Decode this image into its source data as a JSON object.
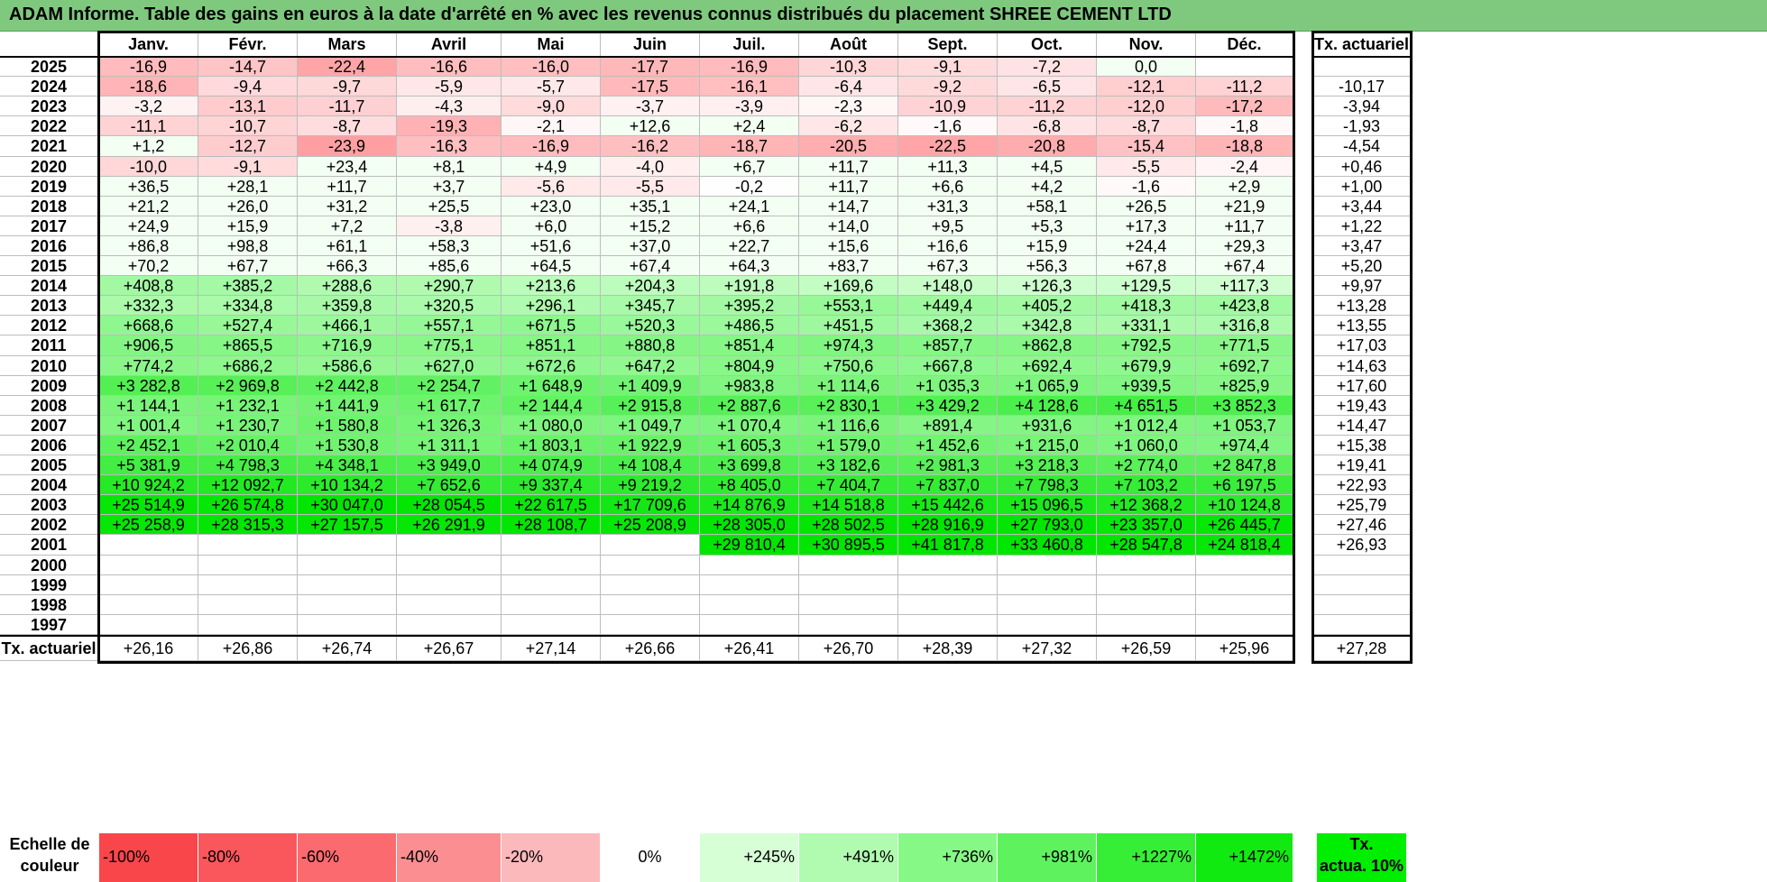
{
  "title": "ADAM Informe. Table des gains en euros à la date d'arrêté en % avec les revenus connus distribués du placement SHREE CEMENT LTD",
  "months": [
    "Janv.",
    "Févr.",
    "Mars",
    "Avril",
    "Mai",
    "Juin",
    "Juil.",
    "Août",
    "Sept.",
    "Oct.",
    "Nov.",
    "Déc."
  ],
  "rate_header": "Tx. actuariel",
  "rows": [
    {
      "year": "2025",
      "values": [
        "-16,9",
        "-14,7",
        "-22,4",
        "-16,6",
        "-16,0",
        "-17,7",
        "-16,9",
        "-10,3",
        "-9,1",
        "-7,2",
        "0,0",
        ""
      ],
      "rate": ""
    },
    {
      "year": "2024",
      "values": [
        "-18,6",
        "-9,4",
        "-9,7",
        "-5,9",
        "-5,7",
        "-17,5",
        "-16,1",
        "-6,4",
        "-9,2",
        "-6,5",
        "-12,1",
        "-11,2"
      ],
      "rate": "-10,17"
    },
    {
      "year": "2023",
      "values": [
        "-3,2",
        "-13,1",
        "-11,7",
        "-4,3",
        "-9,0",
        "-3,7",
        "-3,9",
        "-2,3",
        "-10,9",
        "-11,2",
        "-12,0",
        "-17,2"
      ],
      "rate": "-3,94"
    },
    {
      "year": "2022",
      "values": [
        "-11,1",
        "-10,7",
        "-8,7",
        "-19,3",
        "-2,1",
        "+12,6",
        "+2,4",
        "-6,2",
        "-1,6",
        "-6,8",
        "-8,7",
        "-1,8"
      ],
      "rate": "-1,93"
    },
    {
      "year": "2021",
      "values": [
        "+1,2",
        "-12,7",
        "-23,9",
        "-16,3",
        "-16,9",
        "-16,2",
        "-18,7",
        "-20,5",
        "-22,5",
        "-20,8",
        "-15,4",
        "-18,8"
      ],
      "rate": "-4,54"
    },
    {
      "year": "2020",
      "values": [
        "-10,0",
        "-9,1",
        "+23,4",
        "+8,1",
        "+4,9",
        "-4,0",
        "+6,7",
        "+11,7",
        "+11,3",
        "+4,5",
        "-5,5",
        "-2,4"
      ],
      "rate": "+0,46"
    },
    {
      "year": "2019",
      "values": [
        "+36,5",
        "+28,1",
        "+11,7",
        "+3,7",
        "-5,6",
        "-5,5",
        "-0,2",
        "+11,7",
        "+6,6",
        "+4,2",
        "-1,6",
        "+2,9"
      ],
      "rate": "+1,00"
    },
    {
      "year": "2018",
      "values": [
        "+21,2",
        "+26,0",
        "+31,2",
        "+25,5",
        "+23,0",
        "+35,1",
        "+24,1",
        "+14,7",
        "+31,3",
        "+58,1",
        "+26,5",
        "+21,9"
      ],
      "rate": "+3,44"
    },
    {
      "year": "2017",
      "values": [
        "+24,9",
        "+15,9",
        "+7,2",
        "-3,8",
        "+6,0",
        "+15,2",
        "+6,6",
        "+14,0",
        "+9,5",
        "+5,3",
        "+17,3",
        "+11,7"
      ],
      "rate": "+1,22"
    },
    {
      "year": "2016",
      "values": [
        "+86,8",
        "+98,8",
        "+61,1",
        "+58,3",
        "+51,6",
        "+37,0",
        "+22,7",
        "+15,6",
        "+16,6",
        "+15,9",
        "+24,4",
        "+29,3"
      ],
      "rate": "+3,47"
    },
    {
      "year": "2015",
      "values": [
        "+70,2",
        "+67,7",
        "+66,3",
        "+85,6",
        "+64,5",
        "+67,4",
        "+64,3",
        "+83,7",
        "+67,3",
        "+56,3",
        "+67,8",
        "+67,4"
      ],
      "rate": "+5,20"
    },
    {
      "year": "2014",
      "values": [
        "+408,8",
        "+385,2",
        "+288,6",
        "+290,7",
        "+213,6",
        "+204,3",
        "+191,8",
        "+169,6",
        "+148,0",
        "+126,3",
        "+129,5",
        "+117,3"
      ],
      "rate": "+9,97"
    },
    {
      "year": "2013",
      "values": [
        "+332,3",
        "+334,8",
        "+359,8",
        "+320,5",
        "+296,1",
        "+345,7",
        "+395,2",
        "+553,1",
        "+449,4",
        "+405,2",
        "+418,3",
        "+423,8"
      ],
      "rate": "+13,28"
    },
    {
      "year": "2012",
      "values": [
        "+668,6",
        "+527,4",
        "+466,1",
        "+557,1",
        "+671,5",
        "+520,3",
        "+486,5",
        "+451,5",
        "+368,2",
        "+342,8",
        "+331,1",
        "+316,8"
      ],
      "rate": "+13,55"
    },
    {
      "year": "2011",
      "values": [
        "+906,5",
        "+865,5",
        "+716,9",
        "+775,1",
        "+851,1",
        "+880,8",
        "+851,4",
        "+974,3",
        "+857,7",
        "+862,8",
        "+792,5",
        "+771,5"
      ],
      "rate": "+17,03"
    },
    {
      "year": "2010",
      "values": [
        "+774,2",
        "+686,2",
        "+586,6",
        "+627,0",
        "+672,6",
        "+647,2",
        "+804,9",
        "+750,6",
        "+667,8",
        "+692,4",
        "+679,9",
        "+692,7"
      ],
      "rate": "+14,63"
    },
    {
      "year": "2009",
      "values": [
        "+3 282,8",
        "+2 969,8",
        "+2 442,8",
        "+2 254,7",
        "+1 648,9",
        "+1 409,9",
        "+983,8",
        "+1 114,6",
        "+1 035,3",
        "+1 065,9",
        "+939,5",
        "+825,9"
      ],
      "rate": "+17,60"
    },
    {
      "year": "2008",
      "values": [
        "+1 144,1",
        "+1 232,1",
        "+1 441,9",
        "+1 617,7",
        "+2 144,4",
        "+2 915,8",
        "+2 887,6",
        "+2 830,1",
        "+3 429,2",
        "+4 128,6",
        "+4 651,5",
        "+3 852,3"
      ],
      "rate": "+19,43"
    },
    {
      "year": "2007",
      "values": [
        "+1 001,4",
        "+1 230,7",
        "+1 580,8",
        "+1 326,3",
        "+1 080,0",
        "+1 049,7",
        "+1 070,4",
        "+1 116,6",
        "+891,4",
        "+931,6",
        "+1 012,4",
        "+1 053,7"
      ],
      "rate": "+14,47"
    },
    {
      "year": "2006",
      "values": [
        "+2 452,1",
        "+2 010,4",
        "+1 530,8",
        "+1 311,1",
        "+1 803,1",
        "+1 922,9",
        "+1 605,3",
        "+1 579,0",
        "+1 452,6",
        "+1 215,0",
        "+1 060,0",
        "+974,4"
      ],
      "rate": "+15,38"
    },
    {
      "year": "2005",
      "values": [
        "+5 381,9",
        "+4 798,3",
        "+4 348,1",
        "+3 949,0",
        "+4 074,9",
        "+4 108,4",
        "+3 699,8",
        "+3 182,6",
        "+2 981,3",
        "+3 218,3",
        "+2 774,0",
        "+2 847,8"
      ],
      "rate": "+19,41"
    },
    {
      "year": "2004",
      "values": [
        "+10 924,2",
        "+12 092,7",
        "+10 134,2",
        "+7 652,6",
        "+9 337,4",
        "+9 219,2",
        "+8 405,0",
        "+7 404,7",
        "+7 837,0",
        "+7 798,3",
        "+7 103,2",
        "+6 197,5"
      ],
      "rate": "+22,93"
    },
    {
      "year": "2003",
      "values": [
        "+25 514,9",
        "+26 574,8",
        "+30 047,0",
        "+28 054,5",
        "+22 617,5",
        "+17 709,6",
        "+14 876,9",
        "+14 518,8",
        "+15 442,6",
        "+15 096,5",
        "+12 368,2",
        "+10 124,8"
      ],
      "rate": "+25,79"
    },
    {
      "year": "2002",
      "values": [
        "+25 258,9",
        "+28 315,3",
        "+27 157,5",
        "+26 291,9",
        "+28 108,7",
        "+25 208,9",
        "+28 305,0",
        "+28 502,5",
        "+28 916,9",
        "+27 793,0",
        "+23 357,0",
        "+26 445,7"
      ],
      "rate": "+27,46"
    },
    {
      "year": "2001",
      "values": [
        "",
        "",
        "",
        "",
        "",
        "",
        "+29 810,4",
        "+30 895,5",
        "+41 817,8",
        "+33 460,8",
        "+28 547,8",
        "+24 818,4"
      ],
      "rate": "+26,93"
    },
    {
      "year": "2000",
      "values": [
        "",
        "",
        "",
        "",
        "",
        "",
        "",
        "",
        "",
        "",
        "",
        ""
      ],
      "rate": ""
    },
    {
      "year": "1999",
      "values": [
        "",
        "",
        "",
        "",
        "",
        "",
        "",
        "",
        "",
        "",
        "",
        ""
      ],
      "rate": ""
    },
    {
      "year": "1998",
      "values": [
        "",
        "",
        "",
        "",
        "",
        "",
        "",
        "",
        "",
        "",
        "",
        ""
      ],
      "rate": ""
    },
    {
      "year": "1997",
      "values": [
        "",
        "",
        "",
        "",
        "",
        "",
        "",
        "",
        "",
        "",
        "",
        ""
      ],
      "rate": ""
    }
  ],
  "footer": {
    "label": "Tx. actuariel",
    "values": [
      "+26,16",
      "+26,86",
      "+26,74",
      "+26,67",
      "+27,14",
      "+26,66",
      "+26,41",
      "+26,70",
      "+28,39",
      "+27,32",
      "+26,59",
      "+25,96"
    ],
    "rate": "+27,28"
  },
  "scale": {
    "label_line1": "Echelle de",
    "label_line2": "couleur",
    "steps": [
      {
        "text": "-100%",
        "color": "#f8464b"
      },
      {
        "text": "-80%",
        "color": "#f9575c"
      },
      {
        "text": "-60%",
        "color": "#fa6a6e"
      },
      {
        "text": "-40%",
        "color": "#fb8e91"
      },
      {
        "text": "-20%",
        "color": "#fcb9bb"
      },
      {
        "text": "0%",
        "color": "#ffffff"
      },
      {
        "text": "+245%",
        "color": "#d6ffd6"
      },
      {
        "text": "+491%",
        "color": "#b0fbb0"
      },
      {
        "text": "+736%",
        "color": "#86f886"
      },
      {
        "text": "+981%",
        "color": "#5ef35e"
      },
      {
        "text": "+1227%",
        "color": "#36ee36"
      },
      {
        "text": "+1472%",
        "color": "#10ea10"
      }
    ],
    "badge_line1": "Tx.",
    "badge_line2": "actua. 10%"
  }
}
